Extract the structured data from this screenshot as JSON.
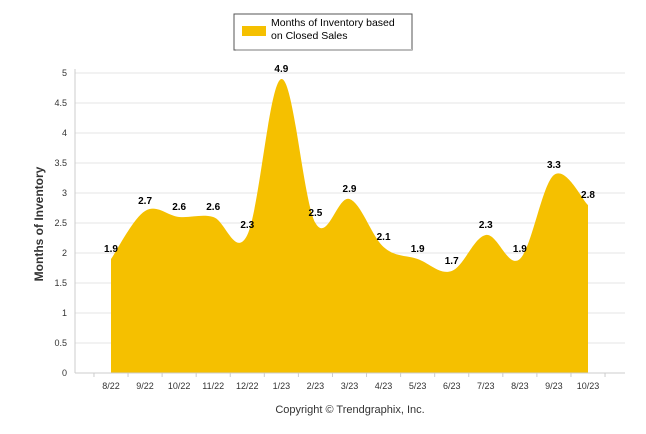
{
  "chart_data": {
    "type": "area",
    "categories": [
      "8/22",
      "9/22",
      "10/22",
      "11/22",
      "12/22",
      "1/23",
      "2/23",
      "3/23",
      "4/23",
      "5/23",
      "6/23",
      "7/23",
      "8/23",
      "9/23",
      "10/23"
    ],
    "series": [
      {
        "name": "Months of Inventory based on Closed Sales",
        "values": [
          1.9,
          2.7,
          2.6,
          2.6,
          2.3,
          4.9,
          2.5,
          2.9,
          2.1,
          1.9,
          1.7,
          2.3,
          1.9,
          3.3,
          2.8
        ],
        "color": "#F5C000"
      }
    ],
    "data_labels": [
      "1.9",
      "2.7",
      "2.6",
      "2.6",
      "2.3",
      "4.9",
      "2.5",
      "2.9",
      "2.1",
      "1.9",
      "1.7",
      "2.3",
      "1.9",
      "3.3",
      "2.8"
    ],
    "y_ticks": [
      "0",
      "0.5",
      "1",
      "1.5",
      "2",
      "2.5",
      "3",
      "3.5",
      "4",
      "4.5",
      "5"
    ],
    "ylim": [
      0,
      5
    ],
    "ylabel": "Months of Inventory",
    "xlabel": "",
    "legend": {
      "lines": [
        "Months of Inventory based",
        "on Closed Sales"
      ],
      "position": "top-center"
    },
    "grid": true
  },
  "footer": {
    "copyright": "Copyright © Trendgraphix, Inc."
  }
}
